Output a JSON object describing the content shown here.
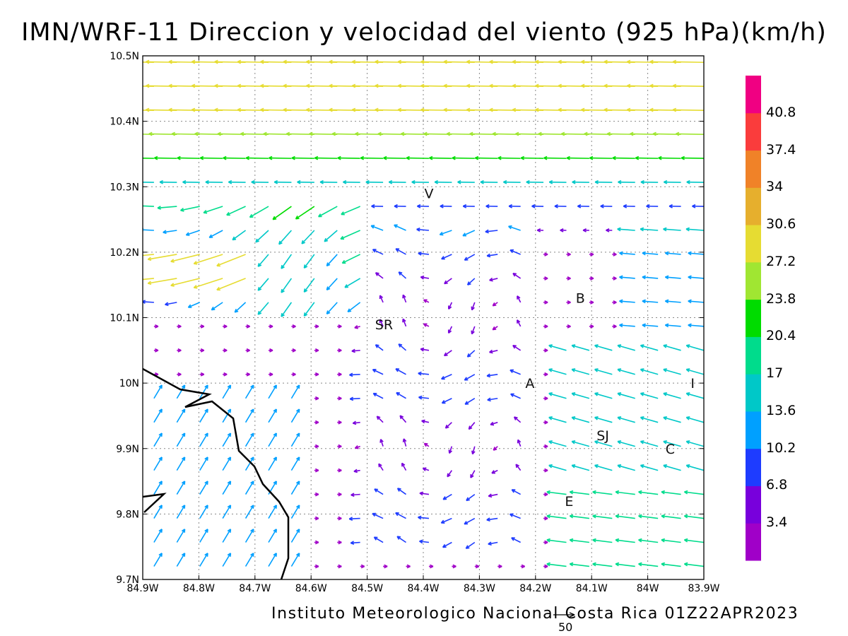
{
  "title": "IMN/WRF-11 Direccion y velocidad del viento (925 hPa)(km/h)",
  "credit": "Instituto Meteorologico Nacional Costa Rica 01Z22APR2023",
  "vector_scale_label": "50",
  "map_extent": {
    "lon": [
      -84.9,
      -83.9
    ],
    "lat": [
      9.7,
      10.5
    ]
  },
  "x_ticks": [
    "84.9W",
    "84.8W",
    "84.7W",
    "84.6W",
    "84.5W",
    "84.4W",
    "84.3W",
    "84.2W",
    "84.1W",
    "84W",
    "83.9W"
  ],
  "y_ticks": [
    "10.5N",
    "10.4N",
    "10.3N",
    "10.2N",
    "10.1N",
    "10N",
    "9.9N",
    "9.8N",
    "9.7N"
  ],
  "colorbar": {
    "labels": [
      "3.4",
      "6.8",
      "10.2",
      "13.6",
      "17",
      "20.4",
      "23.8",
      "27.2",
      "30.6",
      "34",
      "37.4",
      "40.8"
    ],
    "colors": [
      "#a000c8",
      "#7800dc",
      "#1e3cff",
      "#00a0ff",
      "#00c8c8",
      "#00dc8c",
      "#00dc00",
      "#a0e632",
      "#e6dc32",
      "#e6af2d",
      "#f08228",
      "#fa3c3c",
      "#f00082"
    ]
  },
  "cities": [
    {
      "label": "V",
      "lon": -84.39,
      "lat": 10.29
    },
    {
      "label": "SR",
      "lon": -84.47,
      "lat": 10.09
    },
    {
      "label": "B",
      "lon": -84.12,
      "lat": 10.13
    },
    {
      "label": "A",
      "lon": -84.21,
      "lat": 10.0
    },
    {
      "label": "I",
      "lon": -83.92,
      "lat": 10.0
    },
    {
      "label": "SJ",
      "lon": -84.08,
      "lat": 9.92
    },
    {
      "label": "C",
      "lon": -83.96,
      "lat": 9.9
    },
    {
      "label": "E",
      "lon": -84.14,
      "lat": 9.82
    }
  ]
}
